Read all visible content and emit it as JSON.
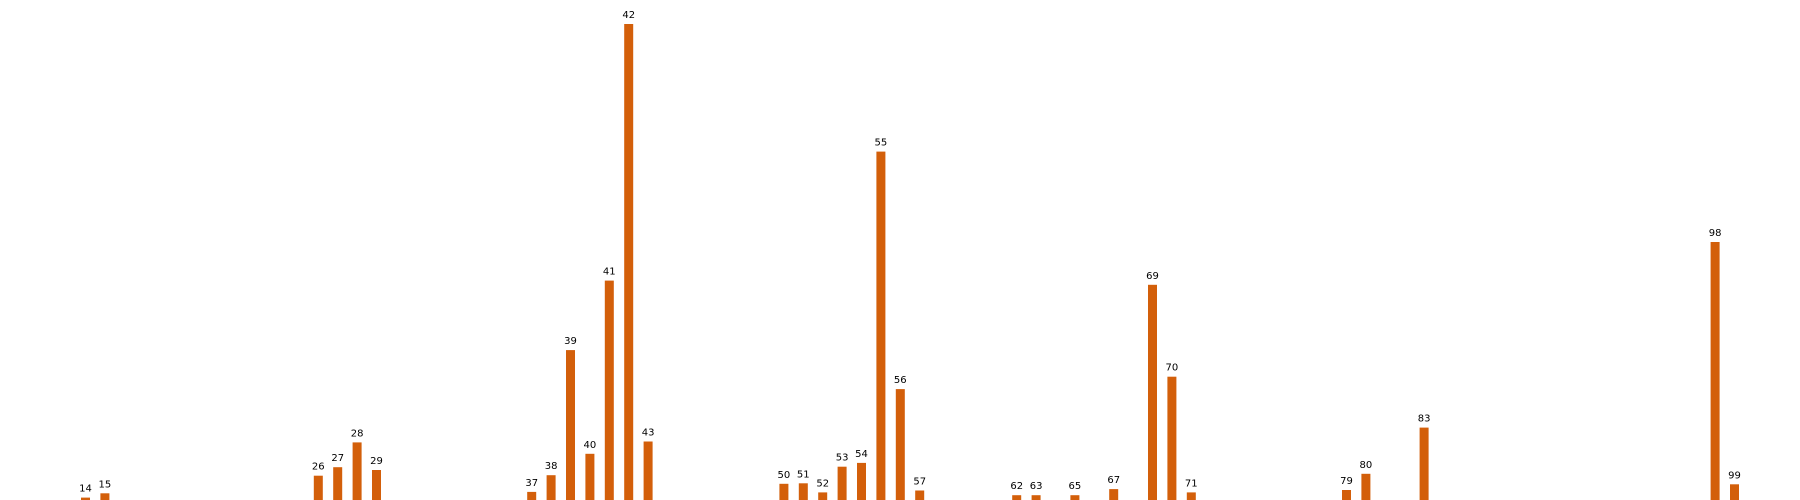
{
  "chart_data": {
    "type": "bar",
    "title": "",
    "xlabel": "",
    "ylabel": "",
    "axes_visible": false,
    "grid": false,
    "bar_color": "#d35f0a",
    "label_color": "#000000",
    "x_range": [
      0,
      100
    ],
    "ylim": [
      0,
      1000
    ],
    "categories": [
      "14",
      "15",
      "26",
      "27",
      "28",
      "29",
      "37",
      "38",
      "39",
      "40",
      "41",
      "42",
      "43",
      "50",
      "51",
      "52",
      "53",
      "54",
      "55",
      "56",
      "57",
      "62",
      "63",
      "65",
      "67",
      "69",
      "70",
      "71",
      "79",
      "80",
      "83",
      "98",
      "99"
    ],
    "values": [
      5,
      14,
      51,
      69,
      121,
      63,
      17,
      52,
      315,
      97,
      461,
      1000,
      123,
      34,
      35,
      16,
      70,
      78,
      732,
      233,
      20,
      10,
      10,
      10,
      23,
      452,
      259,
      16,
      21,
      55,
      152,
      542,
      33
    ]
  }
}
